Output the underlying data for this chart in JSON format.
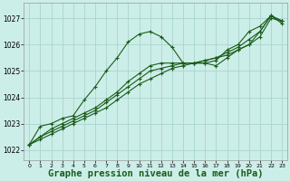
{
  "bg_color": "#cceee8",
  "grid_color": "#aad4ce",
  "line_color": "#1a5c1a",
  "xlabel": "Graphe pression niveau de la mer (hPa)",
  "xlabel_fontsize": 7.5,
  "ylabel_ticks": [
    1022,
    1023,
    1024,
    1025,
    1026,
    1027
  ],
  "xlim": [
    -0.5,
    23.5
  ],
  "ylim": [
    1021.6,
    1027.6
  ],
  "xticks": [
    0,
    1,
    2,
    3,
    4,
    5,
    6,
    7,
    8,
    9,
    10,
    11,
    12,
    13,
    14,
    15,
    16,
    17,
    18,
    19,
    20,
    21,
    22,
    23
  ],
  "series": [
    {
      "x": [
        0,
        1,
        2,
        3,
        4,
        5,
        6,
        7,
        8,
        9,
        10,
        11,
        12,
        13,
        14,
        15,
        16,
        17,
        18,
        19,
        20,
        21,
        22,
        23
      ],
      "y": [
        1022.2,
        1022.4,
        1022.6,
        1022.8,
        1023.0,
        1023.2,
        1023.4,
        1023.6,
        1023.9,
        1024.2,
        1024.5,
        1024.7,
        1024.9,
        1025.1,
        1025.2,
        1025.3,
        1025.4,
        1025.5,
        1025.6,
        1025.8,
        1026.0,
        1026.3,
        1027.0,
        1026.9
      ]
    },
    {
      "x": [
        0,
        1,
        2,
        3,
        4,
        5,
        6,
        7,
        8,
        9,
        10,
        11,
        12,
        13,
        14,
        15,
        16,
        17,
        18,
        19,
        20,
        21,
        22,
        23
      ],
      "y": [
        1022.2,
        1022.5,
        1022.7,
        1022.9,
        1023.1,
        1023.3,
        1023.5,
        1023.8,
        1024.1,
        1024.4,
        1024.7,
        1025.0,
        1025.1,
        1025.2,
        1025.3,
        1025.3,
        1025.4,
        1025.5,
        1025.7,
        1025.9,
        1026.2,
        1026.5,
        1027.1,
        1026.9
      ]
    },
    {
      "x": [
        0,
        1,
        2,
        3,
        4,
        5,
        6,
        7,
        8,
        9,
        10,
        11,
        12,
        13,
        14,
        15,
        16,
        17,
        18,
        19,
        20,
        21,
        22,
        23
      ],
      "y": [
        1022.2,
        1022.5,
        1022.8,
        1023.0,
        1023.2,
        1023.4,
        1023.6,
        1023.9,
        1024.2,
        1024.6,
        1024.9,
        1025.2,
        1025.3,
        1025.3,
        1025.3,
        1025.3,
        1025.3,
        1025.4,
        1025.8,
        1026.0,
        1026.5,
        1026.7,
        1027.1,
        1026.9
      ]
    },
    {
      "x": [
        0,
        1,
        2,
        3,
        4,
        5,
        6,
        7,
        8,
        9,
        10,
        11,
        12,
        13,
        14,
        15,
        16,
        17,
        18,
        19,
        20,
        21,
        22,
        23
      ],
      "y": [
        1022.2,
        1022.9,
        1023.0,
        1023.2,
        1023.3,
        1023.9,
        1024.4,
        1025.0,
        1025.5,
        1026.1,
        1026.4,
        1026.5,
        1026.3,
        1025.9,
        1025.3,
        1025.3,
        1025.3,
        1025.2,
        1025.5,
        1025.8,
        1026.0,
        1026.5,
        1027.1,
        1026.8
      ]
    }
  ]
}
